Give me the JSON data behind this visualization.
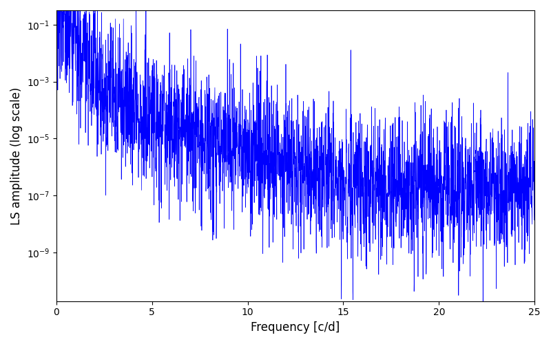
{
  "title": "",
  "xlabel": "Frequency [c/d]",
  "ylabel": "LS amplitude (log scale)",
  "xlim": [
    0,
    25
  ],
  "ylim_log": [
    -10.7,
    -0.5
  ],
  "line_color": "#0000ff",
  "linewidth": 0.5,
  "yscale": "log",
  "figsize": [
    8.0,
    5.0
  ],
  "dpi": 100,
  "seed": 12345,
  "n_freqs": 3000,
  "freq_max": 25.0,
  "background_color": "#ffffff",
  "alpha_power": 4.0,
  "peak_freq": 0.7,
  "peak_amp": 0.12,
  "base_level": 3e-06,
  "sigma_noise": 2.8
}
